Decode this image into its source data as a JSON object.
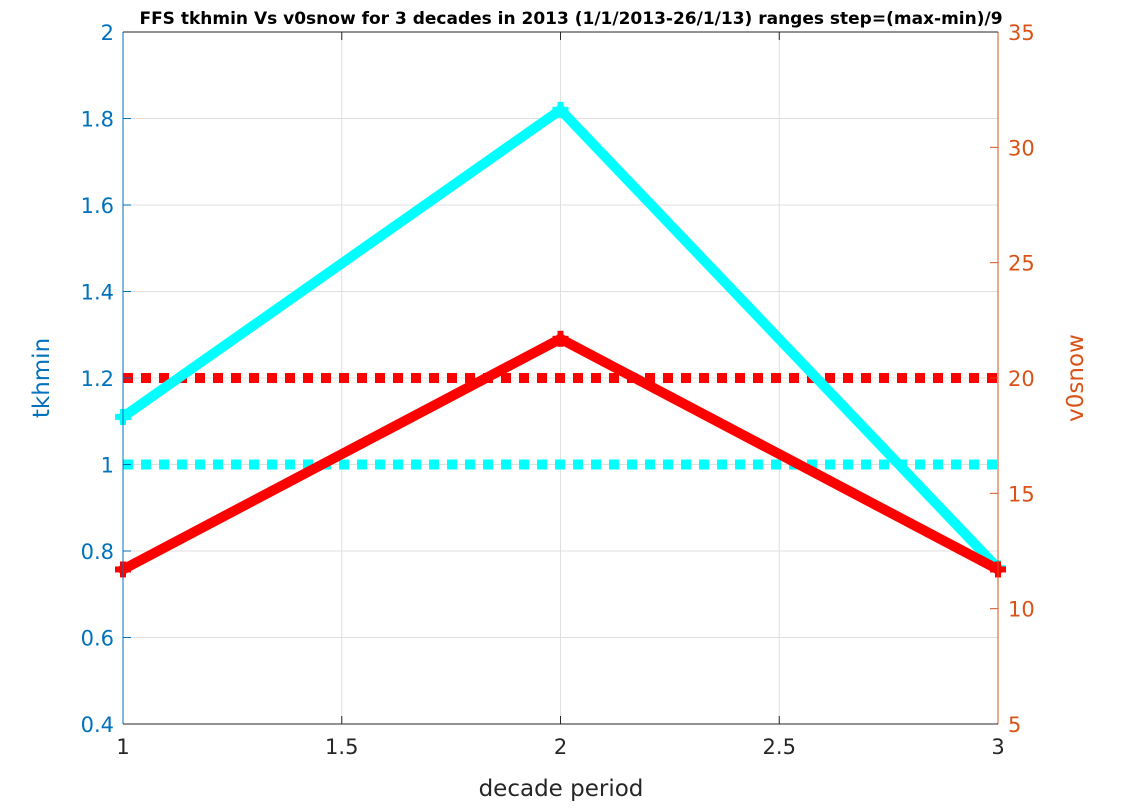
{
  "chart_data": {
    "type": "line",
    "title": "FFS tkhmin Vs v0snow for 3 decades in 2013 (1/1/2013-26/1/13)  ranges step=(max-min)/9",
    "xlabel": "decade period",
    "ylabel_left": "tkhmin",
    "ylabel_right": "v0snow",
    "xlim": [
      1,
      3
    ],
    "ylim_left": [
      0.4,
      2
    ],
    "ylim_right": [
      5,
      35
    ],
    "x_ticks": [
      "1",
      "1.5",
      "2",
      "2.5",
      "3"
    ],
    "y_left_ticks": [
      "0.4",
      "0.6",
      "0.8",
      "1",
      "1.2",
      "1.4",
      "1.6",
      "1.8",
      "2"
    ],
    "y_right_ticks": [
      "5",
      "10",
      "15",
      "20",
      "25",
      "30",
      "35"
    ],
    "grid": true,
    "x": [
      1,
      2,
      3
    ],
    "series": [
      {
        "axis": "left",
        "color": "#00ffff",
        "style": "solid",
        "values": [
          1.11,
          1.82,
          0.76
        ]
      },
      {
        "axis": "right",
        "color": "#ff0000",
        "style": "solid",
        "values": [
          11.7,
          21.7,
          11.7
        ]
      }
    ],
    "reference_lines": [
      {
        "axis": "left",
        "value": 1.0,
        "color": "#00ffff",
        "style": "dotted"
      },
      {
        "axis": "right",
        "value": 20,
        "color": "#ff0000",
        "style": "dotted"
      }
    ],
    "colors": {
      "left_axis": "#0072bd",
      "right_axis": "#d95319",
      "grid": "#dfdfdf"
    }
  }
}
